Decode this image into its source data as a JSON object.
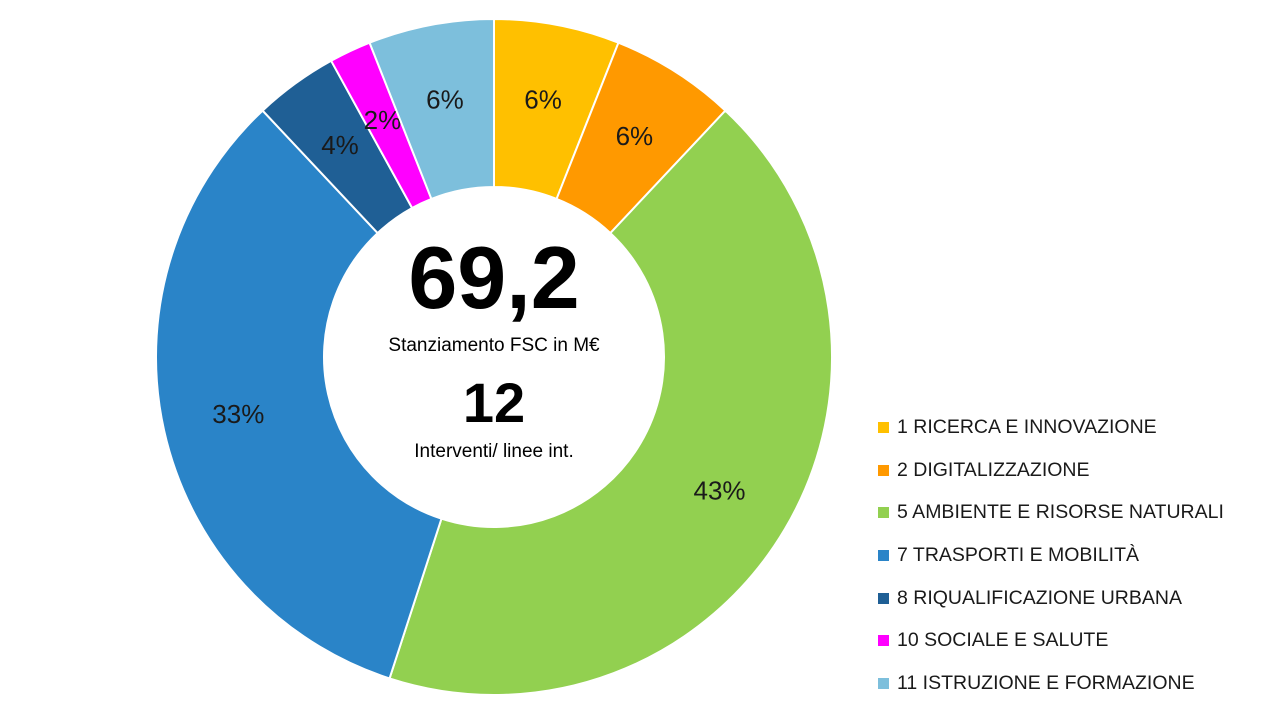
{
  "chart_data": {
    "type": "pie",
    "variant": "donut",
    "categories": [
      "1 RICERCA E INNOVAZIONE",
      "2 DIGITALIZZAZIONE",
      "5 AMBIENTE E RISORSE NATURALI",
      "7 TRASPORTI E MOBILITÀ",
      "8 RIQUALIFICAZIONE URBANA",
      "10 SOCIALE E SALUTE",
      "11 ISTRUZIONE E FORMAZIONE"
    ],
    "values": [
      6,
      6,
      43,
      33,
      4,
      2,
      6
    ],
    "data_labels": [
      "6%",
      "6%",
      "43%",
      "33%",
      "4%",
      "2%",
      "6%"
    ],
    "colors": [
      "#FFC000",
      "#FF9900",
      "#92D050",
      "#2A84C8",
      "#1F5F95",
      "#FF00FF",
      "#7DBFDC"
    ],
    "legend_position": "right-bottom",
    "center": {
      "total_value": "69,2",
      "total_label": "Stanziamento  FSC in M€",
      "count_value": "12",
      "count_label": "Interventi/ linee int."
    }
  }
}
